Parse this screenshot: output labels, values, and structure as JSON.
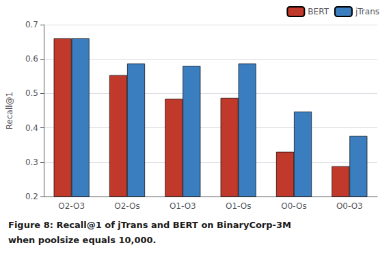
{
  "chart_data": {
    "type": "bar",
    "ylabel": "Recall@1",
    "categories": [
      "O2-O3",
      "O2-Os",
      "O1-O3",
      "O1-Os",
      "O0-Os",
      "O0-O3"
    ],
    "series": [
      {
        "name": "BERT",
        "color": "#c0392b",
        "values": [
          0.66,
          0.553,
          0.484,
          0.487,
          0.33,
          0.288
        ]
      },
      {
        "name": "jTrans",
        "color": "#3a7ebf",
        "values": [
          0.66,
          0.587,
          0.58,
          0.587,
          0.447,
          0.376
        ]
      }
    ],
    "ylim": [
      0.2,
      0.7
    ],
    "yticks": [
      0.2,
      0.3,
      0.4,
      0.5,
      0.6,
      0.7
    ],
    "grid": true,
    "legend": "upper right",
    "annotations": [
      "Figure 8: Recall@1 of jTrans and BERT on BinaryCorp-3M",
      "when poolsize equals 10,000."
    ]
  }
}
